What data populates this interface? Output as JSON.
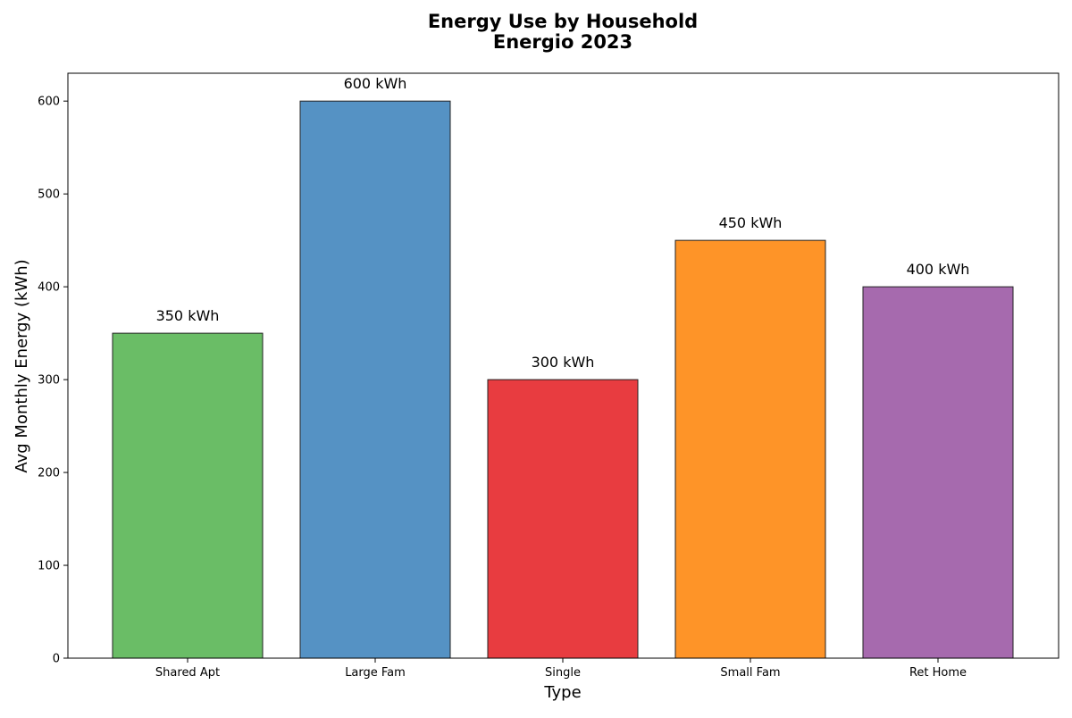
{
  "chart_data": {
    "type": "bar",
    "title_lines": [
      "Energy Use by Household",
      "Energio 2023"
    ],
    "xlabel": "Type",
    "ylabel": "Avg Monthly Energy (kWh)",
    "categories": [
      "Shared Apt",
      "Large Fam",
      "Single",
      "Small Fam",
      "Ret Home"
    ],
    "values": [
      350,
      600,
      300,
      450,
      400
    ],
    "value_labels": [
      "350 kWh",
      "600 kWh",
      "300 kWh",
      "450 kWh",
      "400 kWh"
    ],
    "colors": [
      "#6abd66",
      "#5592c4",
      "#e83c40",
      "#fe9428",
      "#a66aae"
    ],
    "ylim": [
      0,
      630
    ],
    "yticks": [
      0,
      100,
      200,
      300,
      400,
      500,
      600
    ],
    "grid": false,
    "legend": false
  }
}
